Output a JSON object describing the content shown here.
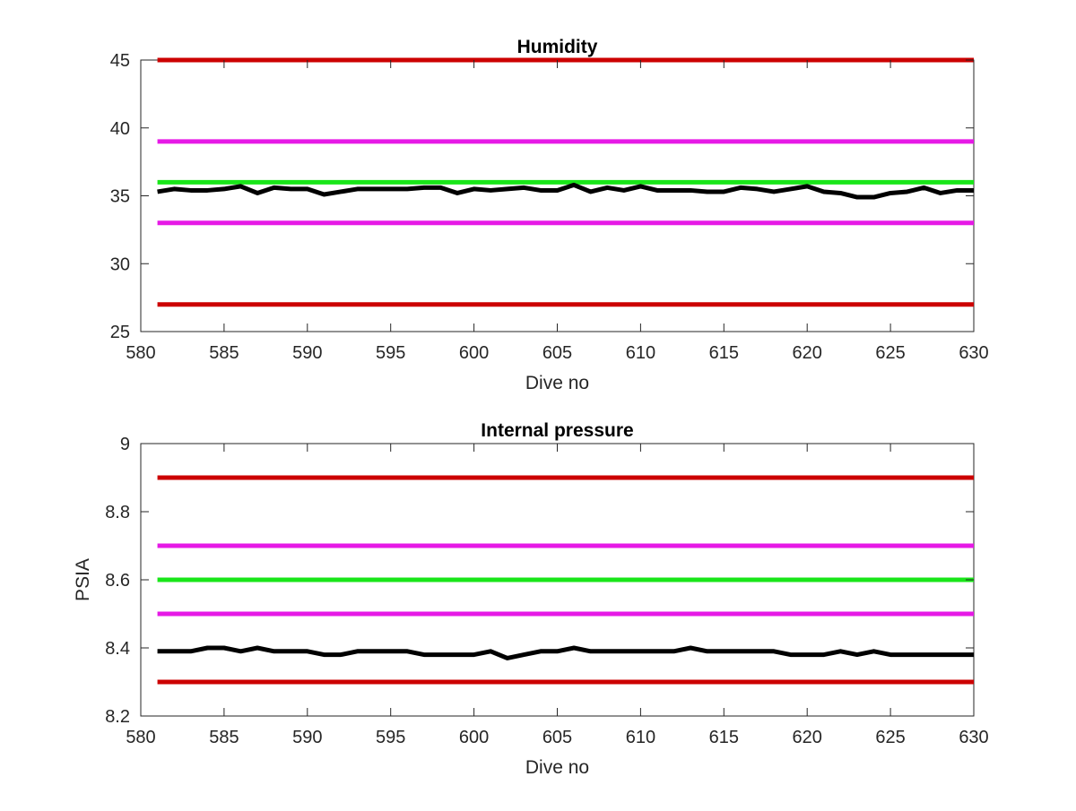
{
  "chart_data": [
    {
      "type": "line",
      "title": "Humidity",
      "xlabel": "Dive no",
      "ylabel": "",
      "xlim": [
        580,
        630
      ],
      "ylim": [
        25,
        45
      ],
      "xticks": [
        580,
        585,
        590,
        595,
        600,
        605,
        610,
        615,
        620,
        625,
        630
      ],
      "yticks": [
        25,
        30,
        35,
        40,
        45
      ],
      "grid": false,
      "legend": "none",
      "hlines": [
        {
          "y": 45,
          "color": "#cc0000",
          "x_range": [
            581,
            630
          ]
        },
        {
          "y": 39,
          "color": "#e619e6",
          "x_range": [
            581,
            630
          ]
        },
        {
          "y": 36,
          "color": "#19e619",
          "x_range": [
            581,
            630
          ]
        },
        {
          "y": 33,
          "color": "#e619e6",
          "x_range": [
            581,
            630
          ]
        },
        {
          "y": 27,
          "color": "#cc0000",
          "x_range": [
            581,
            630
          ]
        }
      ],
      "series": [
        {
          "color": "#000000",
          "x": [
            581,
            582,
            583,
            584,
            585,
            586,
            587,
            588,
            589,
            590,
            591,
            592,
            593,
            594,
            595,
            596,
            597,
            598,
            599,
            600,
            601,
            602,
            603,
            604,
            605,
            606,
            607,
            608,
            609,
            610,
            611,
            612,
            613,
            614,
            615,
            616,
            617,
            618,
            619,
            620,
            621,
            622,
            623,
            624,
            625,
            626,
            627,
            628,
            629,
            630
          ],
          "y": [
            35.3,
            35.5,
            35.4,
            35.4,
            35.5,
            35.7,
            35.2,
            35.6,
            35.5,
            35.5,
            35.1,
            35.3,
            35.5,
            35.5,
            35.5,
            35.5,
            35.6,
            35.6,
            35.2,
            35.5,
            35.4,
            35.5,
            35.6,
            35.4,
            35.4,
            35.8,
            35.3,
            35.6,
            35.4,
            35.7,
            35.4,
            35.4,
            35.4,
            35.3,
            35.3,
            35.6,
            35.5,
            35.3,
            35.5,
            35.7,
            35.3,
            35.2,
            34.9,
            34.9,
            35.2,
            35.3,
            35.6,
            35.2,
            35.4,
            35.4
          ]
        }
      ]
    },
    {
      "type": "line",
      "title": "Internal pressure",
      "xlabel": "Dive no",
      "ylabel": "PSIA",
      "xlim": [
        580,
        630
      ],
      "ylim": [
        8.2,
        9
      ],
      "xticks": [
        580,
        585,
        590,
        595,
        600,
        605,
        610,
        615,
        620,
        625,
        630
      ],
      "yticks": [
        8.2,
        8.4,
        8.6,
        8.8,
        9
      ],
      "grid": false,
      "legend": "none",
      "hlines": [
        {
          "y": 8.9,
          "color": "#cc0000",
          "x_range": [
            581,
            630
          ]
        },
        {
          "y": 8.7,
          "color": "#e619e6",
          "x_range": [
            581,
            630
          ]
        },
        {
          "y": 8.6,
          "color": "#19e619",
          "x_range": [
            581,
            630
          ]
        },
        {
          "y": 8.5,
          "color": "#e619e6",
          "x_range": [
            581,
            630
          ]
        },
        {
          "y": 8.3,
          "color": "#cc0000",
          "x_range": [
            581,
            630
          ]
        }
      ],
      "series": [
        {
          "color": "#000000",
          "x": [
            581,
            582,
            583,
            584,
            585,
            586,
            587,
            588,
            589,
            590,
            591,
            592,
            593,
            594,
            595,
            596,
            597,
            598,
            599,
            600,
            601,
            602,
            603,
            604,
            605,
            606,
            607,
            608,
            609,
            610,
            611,
            612,
            613,
            614,
            615,
            616,
            617,
            618,
            619,
            620,
            621,
            622,
            623,
            624,
            625,
            626,
            627,
            628,
            629,
            630
          ],
          "y": [
            8.39,
            8.39,
            8.39,
            8.4,
            8.4,
            8.39,
            8.4,
            8.39,
            8.39,
            8.39,
            8.38,
            8.38,
            8.39,
            8.39,
            8.39,
            8.39,
            8.38,
            8.38,
            8.38,
            8.38,
            8.39,
            8.37,
            8.38,
            8.39,
            8.39,
            8.4,
            8.39,
            8.39,
            8.39,
            8.39,
            8.39,
            8.39,
            8.4,
            8.39,
            8.39,
            8.39,
            8.39,
            8.39,
            8.38,
            8.38,
            8.38,
            8.39,
            8.38,
            8.39,
            8.38,
            8.38,
            8.38,
            8.38,
            8.38,
            8.38
          ]
        }
      ]
    }
  ]
}
